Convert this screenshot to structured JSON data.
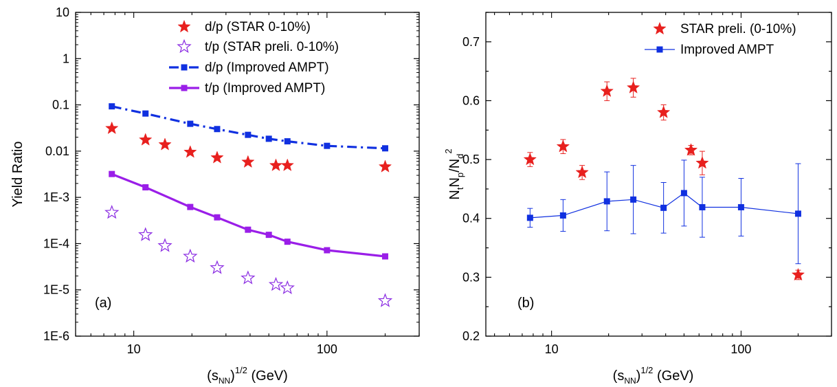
{
  "chart_data": [
    {
      "panel": "a",
      "type": "scatter",
      "panel_label": "(a)",
      "xlabel_base": "(s",
      "xlabel_sub": "NN",
      "xlabel_sup": ")",
      "xlabel_exp": "1/2",
      "xlabel_unit": " (GeV)",
      "ylabel": "Yield Ratio",
      "x_scale": "log",
      "y_scale": "log",
      "xlim": [
        5,
        300
      ],
      "ylim": [
        1e-06,
        10
      ],
      "x_ticks": [
        {
          "value": 10,
          "label": "10"
        },
        {
          "value": 100,
          "label": "100"
        }
      ],
      "y_ticks": [
        {
          "value": 10,
          "label": "10"
        },
        {
          "value": 1,
          "label": "1"
        },
        {
          "value": 0.1,
          "label": "0.1"
        },
        {
          "value": 0.01,
          "label": "0.01"
        },
        {
          "value": 0.001,
          "label": "1E-3"
        },
        {
          "value": 0.0001,
          "label": "1E-4"
        },
        {
          "value": 1e-05,
          "label": "1E-5"
        },
        {
          "value": 1e-06,
          "label": "1E-6"
        }
      ],
      "legend_position": "top-right",
      "series": [
        {
          "name": "d/p (STAR 0-10%)",
          "marker": "filled-star",
          "color": "#e8201e",
          "x": [
            7.7,
            11.5,
            14.5,
            19.6,
            27,
            39,
            54.4,
            62.4,
            200
          ],
          "y": [
            0.031,
            0.0175,
            0.0138,
            0.0095,
            0.0072,
            0.0058,
            0.0049,
            0.0049,
            0.0046
          ]
        },
        {
          "name": "t/p (STAR  preli. 0-10%)",
          "marker": "open-star",
          "color": "#8a2be2",
          "x": [
            7.7,
            11.5,
            14.5,
            19.6,
            27,
            39,
            54.4,
            62.4,
            200
          ],
          "y": [
            0.00047,
            0.000155,
            9e-05,
            5.3e-05,
            3e-05,
            1.8e-05,
            1.3e-05,
            1.1e-05,
            5.8e-06
          ]
        },
        {
          "name": "d/p (Improved AMPT)",
          "marker": "square",
          "line": "dash-dot",
          "color": "#1030e0",
          "x": [
            7.7,
            11.5,
            19.6,
            27,
            39,
            50,
            62.4,
            100,
            200
          ],
          "y": [
            0.093,
            0.065,
            0.039,
            0.03,
            0.0225,
            0.0185,
            0.0163,
            0.013,
            0.0115
          ]
        },
        {
          "name": "t/p (Improved AMPT)",
          "marker": "square",
          "line": "solid",
          "color": "#9a1ee8",
          "x": [
            7.7,
            11.5,
            19.6,
            27,
            39,
            50,
            62.4,
            100,
            200
          ],
          "y": [
            0.0032,
            0.00165,
            0.00062,
            0.00037,
            0.0002,
            0.000155,
            0.00011,
            7.2e-05,
            5.3e-05
          ]
        }
      ]
    },
    {
      "panel": "b",
      "type": "scatter",
      "panel_label": "(b)",
      "xlabel_base": "(s",
      "xlabel_sub": "NN",
      "xlabel_sup": ")",
      "xlabel_exp": "1/2",
      "xlabel_unit": " (GeV)",
      "ylabel_parts": {
        "n1": "N",
        "t": "t",
        "n2": "N",
        "p": "p",
        "slash": "/N",
        "d": "d",
        "two": "2"
      },
      "x_scale": "log",
      "y_scale": "linear",
      "xlim": [
        4.5,
        300
      ],
      "ylim": [
        0.2,
        0.75
      ],
      "x_ticks": [
        {
          "value": 10,
          "label": "10"
        },
        {
          "value": 100,
          "label": "100"
        }
      ],
      "y_ticks": [
        {
          "value": 0.2,
          "label": "0.2"
        },
        {
          "value": 0.3,
          "label": "0.3"
        },
        {
          "value": 0.4,
          "label": "0.4"
        },
        {
          "value": 0.5,
          "label": "0.5"
        },
        {
          "value": 0.6,
          "label": "0.6"
        },
        {
          "value": 0.7,
          "label": "0.7"
        }
      ],
      "legend_position": "top-right",
      "series": [
        {
          "name": "STAR preli. (0-10%)",
          "marker": "filled-star",
          "color": "#e8201e",
          "x": [
            7.7,
            11.5,
            14.5,
            19.6,
            27,
            39,
            54.4,
            62.4,
            200
          ],
          "y": [
            0.5,
            0.522,
            0.478,
            0.616,
            0.622,
            0.58,
            0.516,
            0.494,
            0.304
          ],
          "err": [
            0.012,
            0.012,
            0.012,
            0.016,
            0.016,
            0.013,
            0.008,
            0.02,
            0.008
          ]
        },
        {
          "name": "Improved AMPT",
          "marker": "square",
          "line": "solid",
          "color": "#1030e0",
          "x": [
            7.7,
            11.5,
            19.6,
            27,
            39,
            50,
            62.4,
            100,
            200
          ],
          "y": [
            0.401,
            0.405,
            0.429,
            0.432,
            0.418,
            0.443,
            0.419,
            0.419,
            0.408
          ],
          "err": [
            0.016,
            0.027,
            0.05,
            0.058,
            0.043,
            0.056,
            0.051,
            0.049,
            0.085
          ]
        }
      ]
    }
  ]
}
